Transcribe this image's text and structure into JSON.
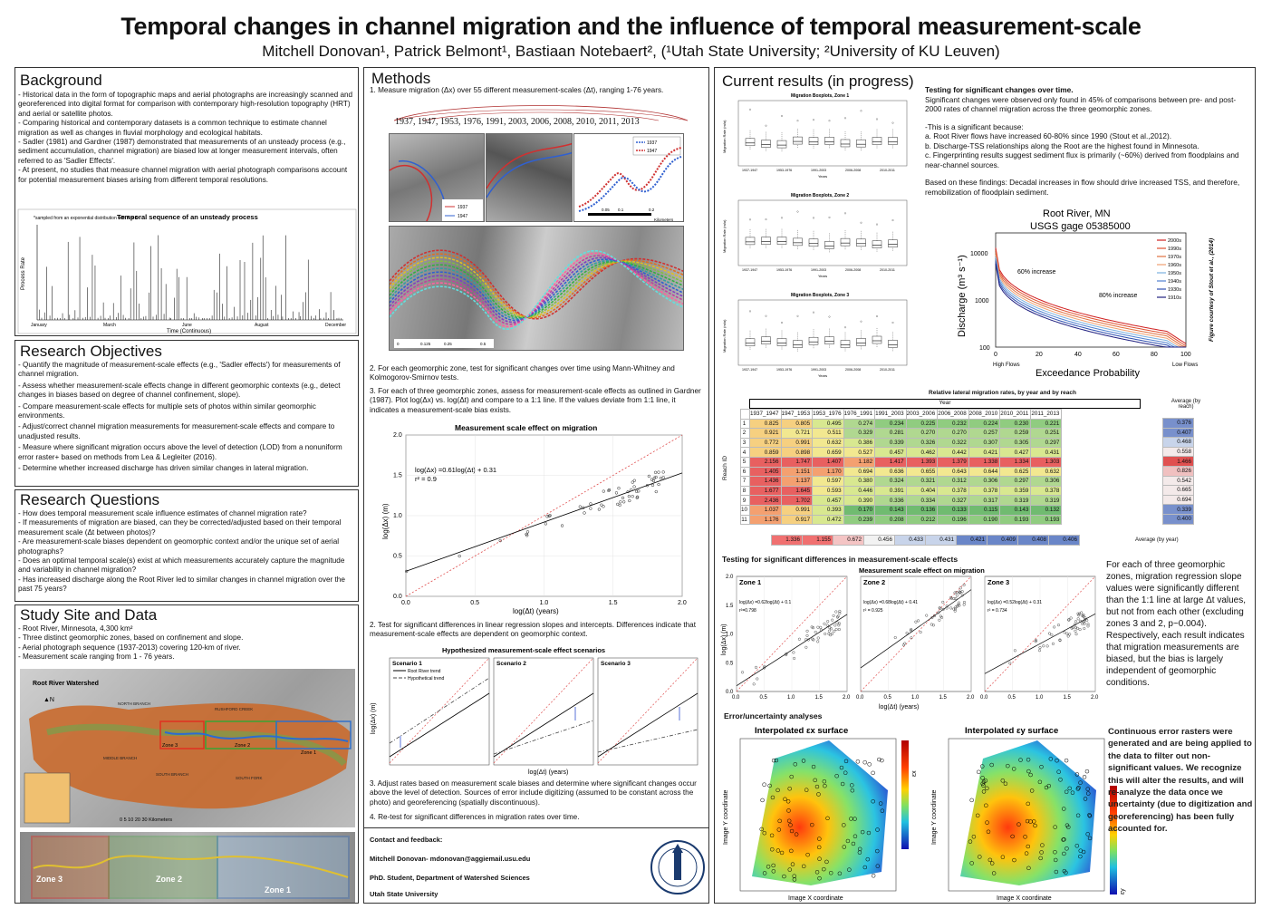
{
  "title": "Temporal changes in channel migration and the influence of temporal measurement-scale",
  "authors": "Mitchell Donovan¹, Patrick Belmont¹, Bastiaan Notebaert², (¹Utah State University; ²University of KU Leuven)",
  "background": {
    "heading": "Background",
    "items": [
      "- Historical data in the form of topographic maps and aerial photographs are increasingly scanned and georeferenced into digital format for comparison with contemporary high-resolution topography (HRT) and aerial or satellite photos.",
      "- Comparing historical and contemporary datasets is a common technique to estimate channel migration as well as changes in fluvial morphology and ecological habitats.",
      "- Sadler (1981) and Gardner (1987) demonstrated that measurements of an unsteady process (e.g., sediment accumulation, channel migration) are biased low at longer measurement intervals, often referred to as 'Sadler Effects'.",
      "- At present, no studies that measure channel migration with aerial photograph comparisons account for potential measurement biases arising from different temporal resolutions."
    ],
    "chart": {
      "title": "Temporal sequence of an unsteady process",
      "note": "*sampled from an exponential distribution with λ = 3",
      "ylabel": "Process Rate",
      "xlabel": "Time (Continuous)",
      "months": [
        "January",
        "March",
        "June",
        "August",
        "December"
      ]
    }
  },
  "objectives": {
    "heading": "Research Objectives",
    "items": [
      "- Quantify the magnitude of measurement-scale effects (e.g., 'Sadler effects') for measurements of channel migration.",
      "- Assess whether measurement-scale effects change in different geomorphic contexts (e.g., detect changes in biases based on degree of channel confinement, slope).",
      "- Compare measurement-scale effects for multiple sets of photos within similar geomorphic environments.",
      "- Adjust/correct channel migration measurements for measurement-scale effects and compare to unadjusted results.",
      "- Measure where significant migration occurs above the level of detection (LOD) from a nonuniform error raster+ based on methods from Lea & Legleiter (2016).",
      "- Determine whether increased discharge has driven similar changes in lateral migration."
    ]
  },
  "questions": {
    "heading": "Research Questions",
    "items": [
      "- How does temporal measurement scale influence estimates of channel migration rate?",
      "- If measurements of migration are biased, can they be corrected/adjusted based on their temporal measurement scale (Δt between photos)?",
      "- Are measurement-scale biases dependent on geomorphic context and/or the unique set of aerial photographs?",
      "- Does an optimal temporal scale(s) exist at which measurements accurately capture the magnitude and variability in channel migration?",
      "- Has increased discharge along the Root River led to similar changes in channel migration over the past 75 years?"
    ]
  },
  "study": {
    "heading": "Study Site and Data",
    "items": [
      "- Root River, Minnesota, 4,300 km²",
      "- Three distinct geomorphic zones, based on confinement and slope.",
      "- Aerial photograph sequence (1937-2013) covering 120-km of river.",
      "- Measurement scale ranging from 1 - 76 years."
    ],
    "map_title": "Root River Watershed",
    "zones": [
      "Zone 3",
      "Zone 2",
      "Zone 1"
    ],
    "scale": "0  5  10  20  30 Kilometers",
    "places": [
      "NORTH BRANCH",
      "MIDDLE BRANCH",
      "RUSHFORD CREEK",
      "SOUTH BRANCH",
      "SOUTH FORK"
    ]
  },
  "methods": {
    "heading": "Methods",
    "step1": "1. Measure migration (Δx) over 55 different measurement-scales (Δt), ranging 1-76 years.",
    "years": "1937, 1947, 1953, 1976, 1991, 2003, 2006, 2008, 2010, 2011, 2013",
    "legend": [
      "1937",
      "1947"
    ],
    "km": "Kilometers",
    "scalebar": [
      "0",
      "0.05",
      "0.1",
      "0.2"
    ],
    "scalebar2": [
      "0",
      "0.125",
      "0.25",
      "0.5"
    ],
    "step2a": "2.  For each geomorphic zone, test for significant changes over time using Mann-Whitney and Kolmogorov-Smirnov tests.",
    "step3a": "3.  For each of three geomorphic zones, assess for measurement-scale effects as outlined in Gardner (1987). Plot log(Δx) vs. log(Δt) and compare to a 1:1 line. If the values deviate from 1:1 line, it indicates a measurement-scale bias exists.",
    "chart_title": "Measurement scale effect on migration",
    "eq": "log(Δx) =0.61log(Δt) + 0.31",
    "r2": "r² = 0.9",
    "xlabel": "log(Δt) (years)",
    "ylabel": "log(Δx)  (m)",
    "step2b": "2.  Test for significant differences in linear regression slopes and intercepts. Differences indicate that measurement-scale effects are dependent on geomorphic context.",
    "scen_title": "Hypothesized measurement-scale effect scenarios",
    "scen": [
      "Scenario 1",
      "Scenario 2",
      "Scenario 3"
    ],
    "scen_leg": [
      "Root River trend",
      "Hypothetical trend"
    ],
    "scen_x": "log(Δt) (years)",
    "scen_y": "log(Δx)  (m)",
    "step3b": "3.  Adjust rates based on measurement scale biases and determine where significant changes occur above the level of detection. Sources of error include digitizing (assumed to be constant across the photo) and georeferencing (spatially discontinuous).",
    "step4": "4.  Re-test for significant differences in migration rates over time."
  },
  "contact": {
    "heading": "Contact and feedback:",
    "email": "Mitchell Donovan- mdonovan@aggiemail.usu.edu",
    "role": "PhD. Student, Department of Watershed Sciences",
    "univ": "Utah State University",
    "seal": "UTAH STATE UNIVERSITY 1888"
  },
  "results": {
    "heading": "Current results (in progress)",
    "box_titles": [
      "Migration Boxplots, Zone 1",
      "Migration Boxplots, Zone 2",
      "Migration Boxplots, Zone 3"
    ],
    "box_xlabel": "Years",
    "box_ylabel": "Migration Rate (m/a)",
    "box_cats": [
      "1937-1947",
      "1953-1976",
      "1991-2003",
      "2006-2008",
      "2010-2011"
    ],
    "sig_heading": "Testing for significant changes over time.",
    "sig_text": "Significant changes were observed only found in 45% of comparisons between pre- and post-2000 rates of channel migration across the three geomorphic zones.",
    "sig_list": [
      "-This is a significant because:",
      "a. Root River flows have increased 60-80% since 1990 (Stout et al.,2012).",
      "b. Discharge-TSS relationships along the Root are the highest found in Minnesota.",
      "c. Fingerprinting results suggest sediment flux is primarily (~60%) derived from floodplains and near-channel sources."
    ],
    "findings": "Based on these findings: Decadal increases in flow should drive increased TSS, and therefore, remobilization of floodplain sediment.",
    "flow_title": "Root River, MN",
    "flow_sub": "USGS gage 05385000",
    "flow_y": "Discharge (m³ s⁻¹)",
    "flow_x": "Exceedance Probability",
    "flow_high": "High Flows",
    "flow_low": "Low Flows",
    "flow_ann": [
      "60% increase",
      "80% increase"
    ],
    "flow_credit": "Figure courtesy of Stout et al., (2014)",
    "flow_decades": [
      "2000s",
      "1990s",
      "1970s",
      "1960s",
      "1950s",
      "1940s",
      "1930s",
      "1910s"
    ],
    "table_title": "Relative lateral migration rates, by year and by reach",
    "table_yearlabel": "Year",
    "table_reach": "Reach ID",
    "table_avg": "Average (by reach)",
    "table_avgyear": "Average (by year)",
    "table_cols": [
      "1937_1947",
      "1947_1953",
      "1953_1976",
      "1976_1991",
      "1991_2003",
      "2003_2006",
      "2006_2008",
      "2008_2010",
      "2010_2011",
      "2011_2013"
    ],
    "table_rows": [
      [
        "1",
        "0.825",
        "0.805",
        "0.495",
        "0.274",
        "0.234",
        "0.225",
        "0.232",
        "0.224",
        "0.230",
        "0.221",
        "0.376"
      ],
      [
        "2",
        "0.921",
        "0.721",
        "0.511",
        "0.329",
        "0.281",
        "0.270",
        "0.270",
        "0.257",
        "0.259",
        "0.251",
        "0.407"
      ],
      [
        "3",
        "0.772",
        "0.991",
        "0.632",
        "0.386",
        "0.339",
        "0.326",
        "0.322",
        "0.307",
        "0.305",
        "0.297",
        "0.468"
      ],
      [
        "4",
        "0.859",
        "0.898",
        "0.659",
        "0.527",
        "0.457",
        "0.462",
        "0.442",
        "0.421",
        "0.427",
        "0.431",
        "0.558"
      ],
      [
        "5",
        "2.156",
        "1.747",
        "1.407",
        "1.182",
        "1.417",
        "1.393",
        "1.379",
        "1.338",
        "1.334",
        "1.303",
        "1.466"
      ],
      [
        "6",
        "1.405",
        "1.151",
        "1.170",
        "0.694",
        "0.636",
        "0.655",
        "0.643",
        "0.644",
        "0.625",
        "0.632",
        "0.826"
      ],
      [
        "7",
        "1.436",
        "1.137",
        "0.597",
        "0.380",
        "0.324",
        "0.321",
        "0.312",
        "0.306",
        "0.297",
        "0.306",
        "0.542"
      ],
      [
        "8",
        "1.677",
        "1.645",
        "0.593",
        "0.446",
        "0.391",
        "0.404",
        "0.378",
        "0.378",
        "0.359",
        "0.378",
        "0.665"
      ],
      [
        "9",
        "2.436",
        "1.702",
        "0.457",
        "0.390",
        "0.336",
        "0.334",
        "0.327",
        "0.317",
        "0.319",
        "0.319",
        "0.694"
      ],
      [
        "10",
        "1.037",
        "0.991",
        "0.393",
        "0.170",
        "0.143",
        "0.136",
        "0.133",
        "0.115",
        "0.143",
        "0.132",
        "0.339"
      ],
      [
        "11",
        "1.176",
        "0.917",
        "0.472",
        "0.239",
        "0.208",
        "0.212",
        "0.196",
        "0.190",
        "0.193",
        "0.193",
        "0.400"
      ]
    ],
    "table_yearavg": [
      "1.336",
      "1.155",
      "0.672",
      "0.456",
      "0.433",
      "0.431",
      "0.421",
      "0.409",
      "0.408",
      "0.406"
    ],
    "mse_heading": "Testing for significant differences in measurement-scale effects",
    "mse_title": "Measurement scale effect on migration",
    "zones": [
      {
        "name": "Zone 1",
        "eq": "log(Δx) =0.62log(Δt) + 0.1",
        "r2": "r²=0.798"
      },
      {
        "name": "Zone 2",
        "eq": "log(Δx) =0.68log(Δt) + 0.41",
        "r2": "r² = 0.925"
      },
      {
        "name": "Zone 3",
        "eq": "log(Δx) =0.52log(Δt) + 0.31",
        "r2": "r² = 0.734"
      }
    ],
    "mse_x": "log(Δt) (years)",
    "mse_y": "log(Δx)  (m)",
    "mse_text": "For each of three geomorphic zones, migration regression slope values were significantly different than the 1:1 line at large Δt values, but not from each other (excluding zones 3 and 2, p~0.004). Respectively, each result indicates that migration measurements are biased, but the bias is largely independent of geomorphic conditions.",
    "err_heading": "Error/uncertainty analyses",
    "err_titles": [
      "Interpolated εx surface",
      "Interpolated εy surface"
    ],
    "err_x": "Image X coordinate",
    "err_y": "Image Y coordinate",
    "err_cb": [
      "εx",
      "εy"
    ],
    "err_text": "Continuous error rasters were generated and are being applied to the data to filter out non-significant values. We recognize this will alter the results, and will re-analyze the data once we uncertainty (due to digitization and georeferencing) has been fully accounted for."
  }
}
